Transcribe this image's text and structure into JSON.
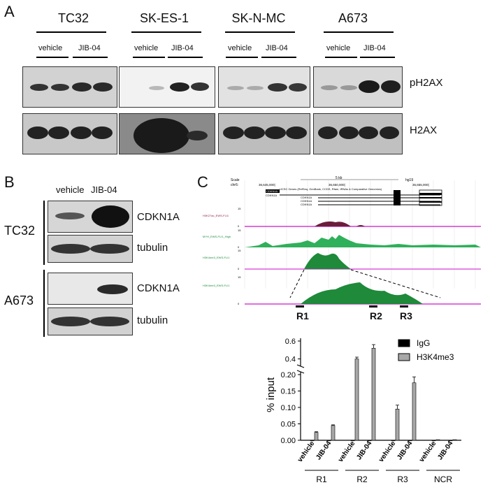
{
  "panels": {
    "a": {
      "letter": "A",
      "cell_lines": [
        "TC32",
        "SK-ES-1",
        "SK-N-MC",
        "A673"
      ],
      "treatments": {
        "vehicle": "vehicle",
        "jib": "JIB-04"
      },
      "proteins": [
        "pH2AX",
        "H2AX"
      ]
    },
    "b": {
      "letter": "B",
      "treatments": {
        "vehicle": "vehicle",
        "jib": "JIB-04"
      },
      "groups": [
        "TC32",
        "A673"
      ],
      "proteins": [
        "CDKN1A",
        "tubulin",
        "CDKN1A",
        "tubulin"
      ]
    },
    "c": {
      "letter": "C",
      "browser": {
        "scale": "Scale",
        "chr": "chr6:",
        "scale_bar": "5 kb",
        "genome": "hg19",
        "coords": [
          "36,645,000|",
          "36,650,000|",
          "36,655,000|"
        ],
        "genes_track": "UCSC Genes (RefSeq, GenBank, CCDS, Rfam, tRNAs & Comparative Genomics)",
        "gene_names": [
          "CDKN1A",
          "CDKN1A",
          "CDKN1A",
          "CDKN1A",
          "CDKN1A"
        ],
        "tracks": [
          "H3K27ac_EWS-FLI1",
          "MYH_EWS-FLI1_High",
          "H3K4me3_EWS-FLI1",
          "H3K4me3_EWS-FLI1"
        ],
        "track_ticks": [
          "15",
          "0",
          "15",
          "0",
          "15",
          "0",
          "15",
          "0"
        ],
        "regions": [
          "R1",
          "R2",
          "R3"
        ]
      }
    }
  },
  "chart_data": {
    "type": "bar",
    "ylabel": "% input",
    "groups": [
      "R1",
      "R2",
      "R3",
      "NCR"
    ],
    "treatments": [
      "vehicle",
      "JIB-04"
    ],
    "yticks_upper": [
      "0.6",
      "0.4"
    ],
    "yticks_lower": [
      "0.20",
      "0.15",
      "0.10",
      "0.05",
      "0.00"
    ],
    "series": [
      {
        "name": "IgG",
        "color": "#000000",
        "values": [
          0.0,
          0.0,
          0.0,
          0.0,
          0.0,
          0.0,
          0.0,
          0.0
        ],
        "errors": [
          0,
          0,
          0,
          0,
          0,
          0,
          0,
          0
        ]
      },
      {
        "name": "H3K4me3",
        "color": "#a8a8a8",
        "values": [
          0.024,
          0.045,
          0.4,
          0.52,
          0.095,
          0.175,
          0.002,
          0.002
        ],
        "errors": [
          0.002,
          0.002,
          0.02,
          0.04,
          0.012,
          0.018,
          0.0,
          0.0
        ]
      }
    ],
    "ylim": [
      0,
      0.6
    ],
    "axis_break": [
      0.2,
      0.35
    ]
  }
}
